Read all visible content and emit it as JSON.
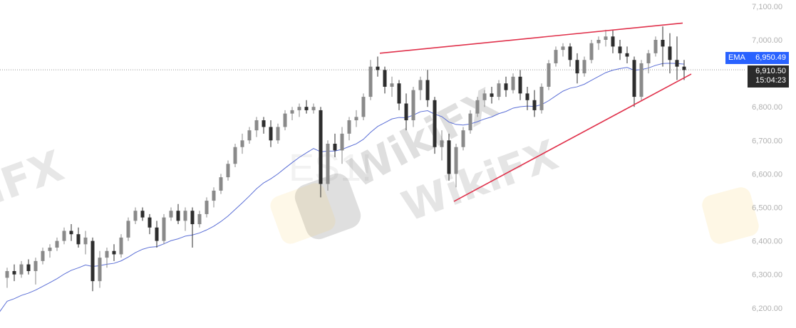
{
  "chart_data": {
    "type": "candlestick",
    "symbol_watermark": "ES1!",
    "watermark": "WikiFX",
    "y_axis": {
      "ticks": [
        "7,100.00",
        "7,000.00",
        "6,800.00",
        "6,700.00",
        "6,600.00",
        "6,500.00",
        "6,400.00",
        "6,300.00",
        "6,200.00"
      ],
      "tick_values": [
        7100,
        7000,
        6800,
        6700,
        6600,
        6500,
        6400,
        6300,
        6200
      ],
      "ylim": [
        6160,
        7110
      ]
    },
    "grid": false,
    "colors": {
      "up": "#8a8a8a",
      "down": "#2e2e2e",
      "ema": "#5b6fd6",
      "trendline": "#e0314b",
      "ema_tag": "#2962ff",
      "price_tag": "#2b2b2b"
    },
    "ema": {
      "label": "EMA",
      "value": "6,950.49",
      "period": 20
    },
    "last_price": {
      "value": "6,910.50",
      "price": 6910.5,
      "countdown": "15:04:23"
    },
    "trendlines": [
      {
        "from": [
          52.3,
          6960
        ],
        "to": [
          94.8,
          7050
        ]
      },
      {
        "from": [
          62.7,
          6518
        ],
        "to": [
          96,
          6898
        ]
      }
    ],
    "candles": [
      [
        6290,
        6320,
        6260,
        6310
      ],
      [
        6310,
        6330,
        6280,
        6300
      ],
      [
        6300,
        6340,
        6290,
        6330
      ],
      [
        6330,
        6345,
        6300,
        6310
      ],
      [
        6310,
        6350,
        6270,
        6340
      ],
      [
        6340,
        6380,
        6330,
        6370
      ],
      [
        6370,
        6390,
        6350,
        6380
      ],
      [
        6380,
        6410,
        6370,
        6400
      ],
      [
        6400,
        6440,
        6390,
        6430
      ],
      [
        6430,
        6450,
        6400,
        6420
      ],
      [
        6420,
        6440,
        6380,
        6390
      ],
      [
        6390,
        6430,
        6360,
        6410
      ],
      [
        6400,
        6410,
        6250,
        6280
      ],
      [
        6280,
        6370,
        6260,
        6350
      ],
      [
        6350,
        6380,
        6320,
        6370
      ],
      [
        6370,
        6390,
        6340,
        6360
      ],
      [
        6360,
        6420,
        6350,
        6410
      ],
      [
        6410,
        6470,
        6400,
        6460
      ],
      [
        6460,
        6500,
        6450,
        6490
      ],
      [
        6490,
        6500,
        6460,
        6470
      ],
      [
        6470,
        6480,
        6420,
        6440
      ],
      [
        6440,
        6460,
        6380,
        6400
      ],
      [
        6400,
        6480,
        6390,
        6470
      ],
      [
        6470,
        6500,
        6460,
        6490
      ],
      [
        6490,
        6510,
        6450,
        6460
      ],
      [
        6460,
        6500,
        6430,
        6490
      ],
      [
        6490,
        6500,
        6380,
        6450
      ],
      [
        6450,
        6490,
        6440,
        6480
      ],
      [
        6480,
        6530,
        6470,
        6520
      ],
      [
        6520,
        6560,
        6500,
        6550
      ],
      [
        6550,
        6600,
        6540,
        6590
      ],
      [
        6590,
        6640,
        6580,
        6630
      ],
      [
        6630,
        6690,
        6620,
        6680
      ],
      [
        6680,
        6720,
        6660,
        6700
      ],
      [
        6700,
        6740,
        6690,
        6730
      ],
      [
        6730,
        6770,
        6710,
        6760
      ],
      [
        6760,
        6770,
        6720,
        6740
      ],
      [
        6740,
        6760,
        6680,
        6700
      ],
      [
        6700,
        6750,
        6690,
        6740
      ],
      [
        6740,
        6790,
        6730,
        6780
      ],
      [
        6780,
        6800,
        6760,
        6790
      ],
      [
        6790,
        6810,
        6770,
        6800
      ],
      [
        6800,
        6820,
        6780,
        6790
      ],
      [
        6790,
        6810,
        6780,
        6800
      ],
      [
        6790,
        6800,
        6530,
        6570
      ],
      [
        6570,
        6700,
        6550,
        6690
      ],
      [
        6690,
        6720,
        6650,
        6670
      ],
      [
        6670,
        6740,
        6630,
        6720
      ],
      [
        6720,
        6770,
        6700,
        6760
      ],
      [
        6760,
        6790,
        6740,
        6770
      ],
      [
        6770,
        6840,
        6760,
        6830
      ],
      [
        6830,
        6940,
        6820,
        6920
      ],
      [
        6920,
        6950,
        6890,
        6910
      ],
      [
        6910,
        6920,
        6840,
        6860
      ],
      [
        6860,
        6890,
        6830,
        6870
      ],
      [
        6870,
        6880,
        6790,
        6810
      ],
      [
        6810,
        6840,
        6730,
        6760
      ],
      [
        6760,
        6860,
        6740,
        6850
      ],
      [
        6850,
        6890,
        6820,
        6880
      ],
      [
        6880,
        6910,
        6800,
        6820
      ],
      [
        6820,
        6830,
        6660,
        6680
      ],
      [
        6680,
        6730,
        6640,
        6700
      ],
      [
        6700,
        6720,
        6580,
        6600
      ],
      [
        6600,
        6690,
        6560,
        6680
      ],
      [
        6680,
        6740,
        6670,
        6730
      ],
      [
        6730,
        6790,
        6720,
        6780
      ],
      [
        6780,
        6830,
        6770,
        6820
      ],
      [
        6820,
        6850,
        6800,
        6840
      ],
      [
        6840,
        6860,
        6810,
        6830
      ],
      [
        6830,
        6880,
        6820,
        6870
      ],
      [
        6870,
        6890,
        6830,
        6850
      ],
      [
        6850,
        6900,
        6840,
        6890
      ],
      [
        6890,
        6910,
        6820,
        6840
      ],
      [
        6840,
        6860,
        6790,
        6820
      ],
      [
        6820,
        6850,
        6770,
        6790
      ],
      [
        6790,
        6870,
        6780,
        6860
      ],
      [
        6860,
        6940,
        6850,
        6930
      ],
      [
        6930,
        6980,
        6920,
        6970
      ],
      [
        6970,
        6990,
        6950,
        6980
      ],
      [
        6980,
        6990,
        6920,
        6940
      ],
      [
        6940,
        6960,
        6870,
        6900
      ],
      [
        6900,
        6950,
        6890,
        6940
      ],
      [
        6940,
        7000,
        6930,
        6990
      ],
      [
        6990,
        7010,
        6970,
        7000
      ],
      [
        7000,
        7030,
        6980,
        7010
      ],
      [
        7010,
        7030,
        6960,
        6980
      ],
      [
        6980,
        7000,
        6940,
        6960
      ],
      [
        6960,
        6980,
        6930,
        6950
      ],
      [
        6940,
        6950,
        6800,
        6830
      ],
      [
        6830,
        6940,
        6820,
        6930
      ],
      [
        6930,
        6970,
        6900,
        6960
      ],
      [
        6960,
        7010,
        6950,
        7000
      ],
      [
        7000,
        7040,
        6920,
        6980
      ],
      [
        6980,
        7020,
        6900,
        6940
      ],
      [
        6940,
        7010,
        6880,
        6920
      ],
      [
        6920,
        6940,
        6880,
        6910
      ]
    ]
  }
}
